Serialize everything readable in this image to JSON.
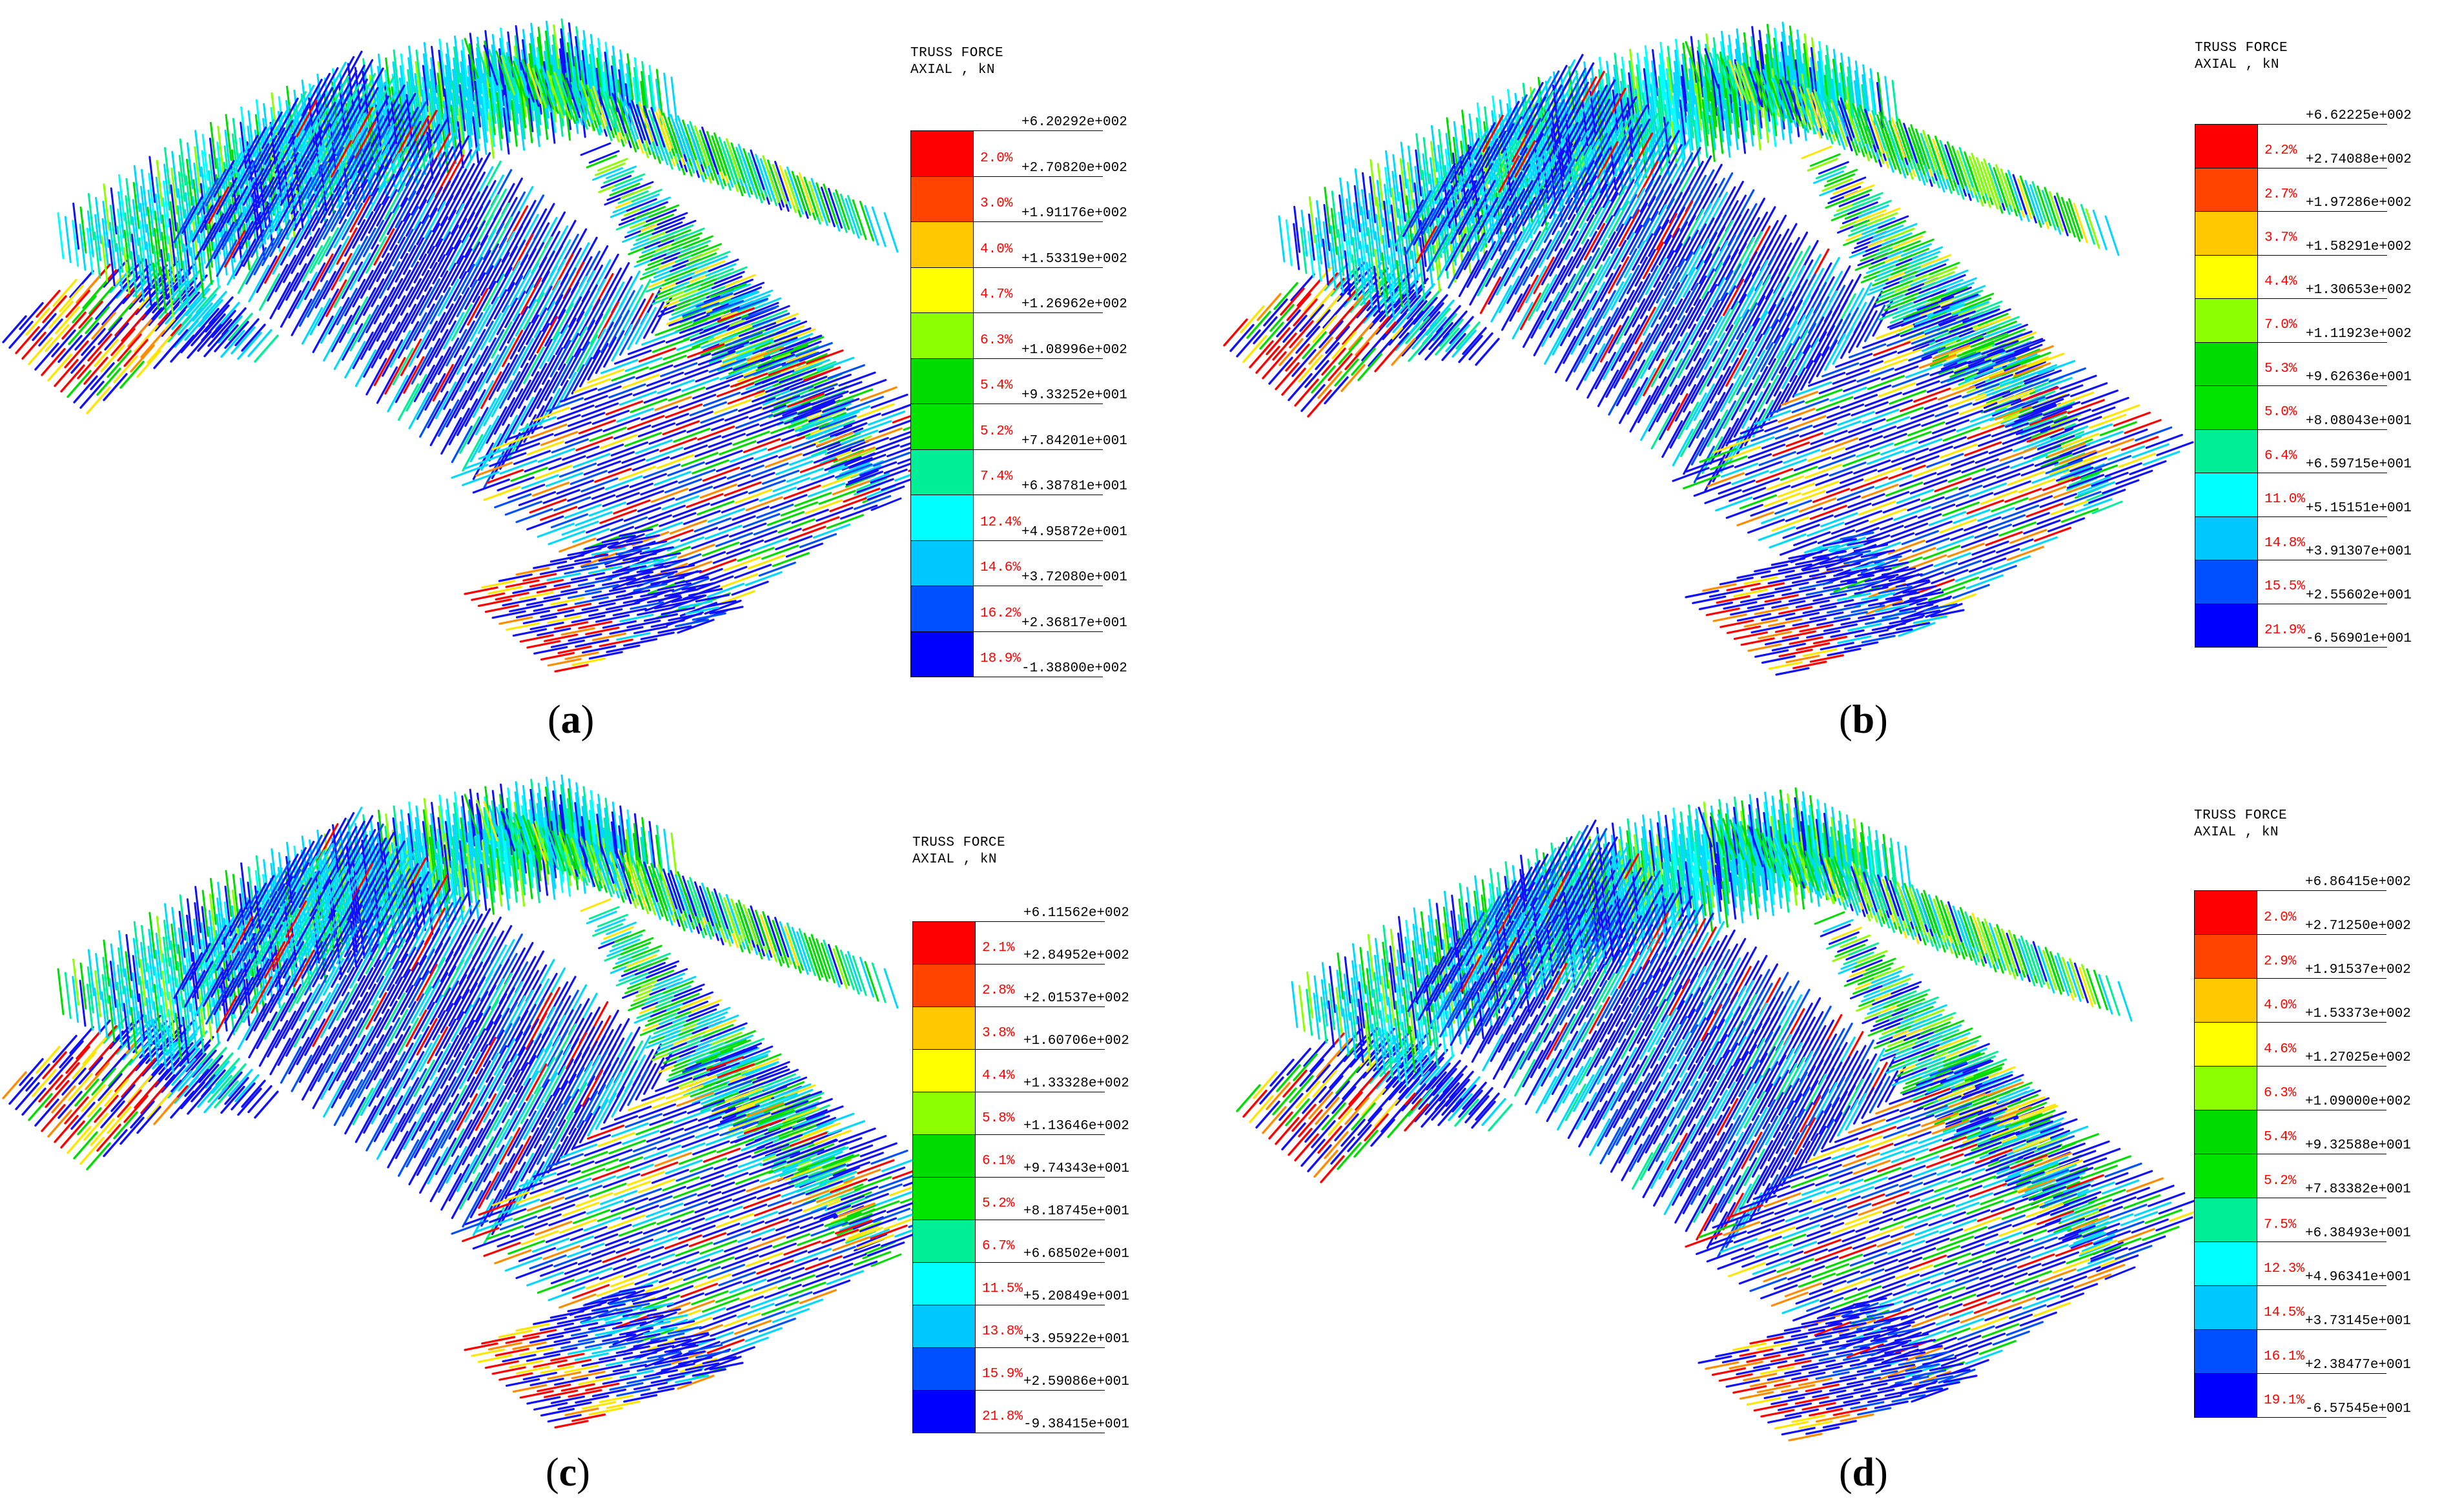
{
  "panels": [
    {
      "id": "a",
      "caption_open": "(",
      "caption_letter": "a",
      "caption_close": ")",
      "legend": {
        "title_line1": "TRUSS FORCE",
        "title_line2": "AXIAL , kN",
        "ticks": [
          "+6.20292e+002",
          "+2.70820e+002",
          "+1.91176e+002",
          "+1.53319e+002",
          "+1.26962e+002",
          "+1.08996e+002",
          "+9.33252e+001",
          "+7.84201e+001",
          "+6.38781e+001",
          "+4.95872e+001",
          "+3.72080e+001",
          "+2.36817e+001",
          "-1.38800e+002"
        ],
        "percents": [
          "2.0%",
          "3.0%",
          "4.0%",
          "4.7%",
          "6.3%",
          "5.4%",
          "5.2%",
          "7.4%",
          "12.4%",
          "14.6%",
          "16.2%",
          "18.9%"
        ]
      }
    },
    {
      "id": "b",
      "caption_open": "(",
      "caption_letter": "b",
      "caption_close": ")",
      "legend": {
        "title_line1": "TRUSS FORCE",
        "title_line2": "AXIAL , kN",
        "ticks": [
          "+6.62225e+002",
          "+2.74088e+002",
          "+1.97286e+002",
          "+1.58291e+002",
          "+1.30653e+002",
          "+1.11923e+002",
          "+9.62636e+001",
          "+8.08043e+001",
          "+6.59715e+001",
          "+5.15151e+001",
          "+3.91307e+001",
          "+2.55602e+001",
          "-6.56901e+001"
        ],
        "percents": [
          "2.2%",
          "2.7%",
          "3.7%",
          "4.4%",
          "7.0%",
          "5.3%",
          "5.0%",
          "6.4%",
          "11.0%",
          "14.8%",
          "15.5%",
          "21.9%"
        ]
      }
    },
    {
      "id": "c",
      "caption_open": "(",
      "caption_letter": "c",
      "caption_close": ")",
      "legend": {
        "title_line1": "TRUSS FORCE",
        "title_line2": "AXIAL , kN",
        "ticks": [
          "+6.11562e+002",
          "+2.84952e+002",
          "+2.01537e+002",
          "+1.60706e+002",
          "+1.33328e+002",
          "+1.13646e+002",
          "+9.74343e+001",
          "+8.18745e+001",
          "+6.68502e+001",
          "+5.20849e+001",
          "+3.95922e+001",
          "+2.59086e+001",
          "-9.38415e+001"
        ],
        "percents": [
          "2.1%",
          "2.8%",
          "3.8%",
          "4.4%",
          "5.8%",
          "6.1%",
          "5.2%",
          "6.7%",
          "11.5%",
          "13.8%",
          "15.9%",
          "21.8%"
        ]
      }
    },
    {
      "id": "d",
      "caption_open": "(",
      "caption_letter": "d",
      "caption_close": ")",
      "legend": {
        "title_line1": "TRUSS FORCE",
        "title_line2": "AXIAL , kN",
        "ticks": [
          "+6.86415e+002",
          "+2.71250e+002",
          "+1.91537e+002",
          "+1.53373e+002",
          "+1.27025e+002",
          "+1.09000e+002",
          "+9.32588e+001",
          "+7.83382e+001",
          "+6.38493e+001",
          "+4.96341e+001",
          "+3.73145e+001",
          "+2.38477e+001",
          "-6.57545e+001"
        ],
        "percents": [
          "2.0%",
          "2.9%",
          "4.0%",
          "4.6%",
          "6.3%",
          "5.4%",
          "5.2%",
          "7.5%",
          "12.3%",
          "14.5%",
          "16.1%",
          "19.1%"
        ]
      }
    }
  ],
  "colors": {
    "bands": [
      "#ff0000",
      "#ff4400",
      "#ffc800",
      "#ffff00",
      "#8cff00",
      "#00dc00",
      "#00e400",
      "#00ee96",
      "#00ffff",
      "#00c8ff",
      "#0050ff",
      "#0000ff"
    ],
    "percent_text": "#ff0000"
  }
}
